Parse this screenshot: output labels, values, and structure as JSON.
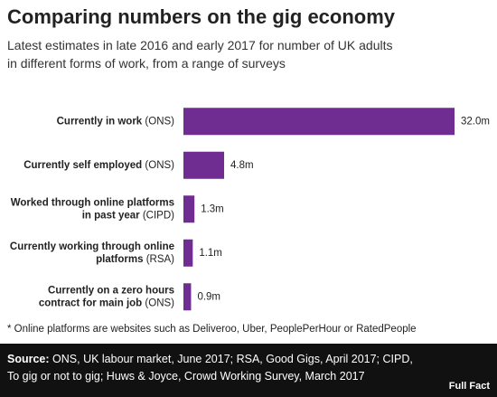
{
  "chart_data": {
    "type": "bar",
    "orientation": "horizontal",
    "title": "Comparing numbers on the gig economy",
    "subtitle": "Latest estimates in late 2016 and early 2017 for number of UK adults in different forms of work, from a range of surveys",
    "categories": [
      "Currently in work (ONS)",
      "Currently self employed (ONS)",
      "Worked through online platforms in past year (CIPD)",
      "Currently working through online platforms (RSA)",
      "Currently on a zero hours contract for main job (ONS)"
    ],
    "values": [
      32.0,
      4.8,
      1.3,
      1.1,
      0.9
    ],
    "value_labels": [
      "32.0m",
      "4.8m",
      "1.3m",
      "1.1m",
      "0.9m"
    ],
    "color": "#6f2c91",
    "footnote": "* Online platforms are websites such as Deliveroo, Uber, PeoplePerHour or RatedPeople",
    "source_label": "Source:",
    "source": "ONS, UK labour market, June 2017; RSA, Good Gigs, April 2017; CIPD, To gig or not to gig; Huws & Joyce, Crowd Working Survey, March 2017",
    "logo": "Full Fact"
  }
}
